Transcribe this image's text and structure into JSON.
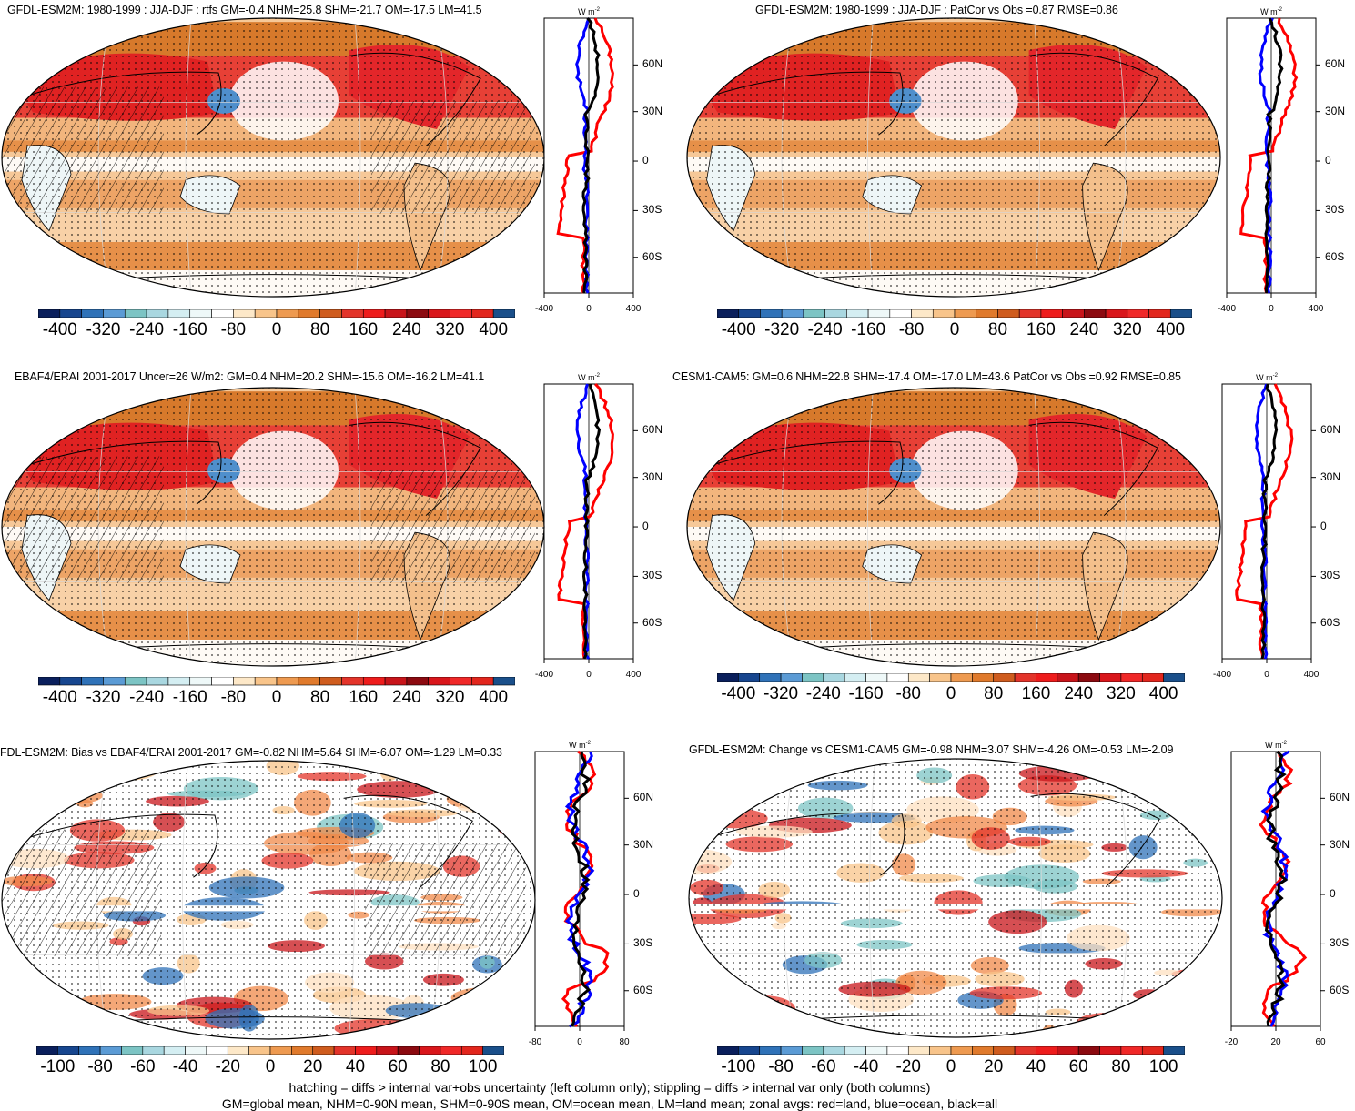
{
  "panels": [
    {
      "id": "p1",
      "title": "GFDL-ESM2M: 1980-1999 : JJA-DJF : rtfs GM=-0.4 NHM=25.8 SHM=-21.7 OM=-17.5 LM=41.5",
      "colorbar_labels": [
        "-400",
        "-320",
        "-240",
        "-160",
        "-80",
        "0",
        "80",
        "160",
        "240",
        "320",
        "400"
      ],
      "zonal_x_labels": [
        "-400",
        "0",
        "400"
      ],
      "zonal_y_labels": [
        "60N",
        "30N",
        "0",
        "30S",
        "60S"
      ],
      "zonal_unit": "W m",
      "zonal_unit_sup": "-2",
      "hatched": true,
      "style": "mean"
    },
    {
      "id": "p2",
      "title": "GFDL-ESM2M: 1980-1999 : JJA-DJF : PatCor vs Obs =0.87 RMSE=0.86",
      "colorbar_labels": [
        "-400",
        "-320",
        "-240",
        "-160",
        "-80",
        "0",
        "80",
        "160",
        "240",
        "320",
        "400"
      ],
      "zonal_x_labels": [
        "-400",
        "0",
        "400"
      ],
      "zonal_y_labels": [
        "60N",
        "30N",
        "0",
        "30S",
        "60S"
      ],
      "zonal_unit": "W m",
      "zonal_unit_sup": "-2",
      "hatched": false,
      "style": "mean"
    },
    {
      "id": "p3",
      "title": "EBAF4/ERAI 2001-2017 Uncer=26 W/m2: GM=0.4 NHM=20.2 SHM=-15.6 OM=-16.2 LM=41.1",
      "colorbar_labels": [
        "-400",
        "-320",
        "-240",
        "-160",
        "-80",
        "0",
        "80",
        "160",
        "240",
        "320",
        "400"
      ],
      "zonal_x_labels": [
        "-400",
        "0",
        "400"
      ],
      "zonal_y_labels": [
        "60N",
        "30N",
        "0",
        "30S",
        "60S"
      ],
      "zonal_unit": "W m",
      "zonal_unit_sup": "-2",
      "hatched": true,
      "style": "mean"
    },
    {
      "id": "p4",
      "title": "CESM1-CAM5: GM=0.6 NHM=22.8 SHM=-17.4 OM=-17.0 LM=43.6 PatCor vs Obs =0.92 RMSE=0.85",
      "colorbar_labels": [
        "-400",
        "-320",
        "-240",
        "-160",
        "-80",
        "0",
        "80",
        "160",
        "240",
        "320",
        "400"
      ],
      "zonal_x_labels": [
        "-400",
        "0",
        "400"
      ],
      "zonal_y_labels": [
        "60N",
        "30N",
        "0",
        "30S",
        "60S"
      ],
      "zonal_unit": "W m",
      "zonal_unit_sup": "-2",
      "hatched": false,
      "style": "mean"
    },
    {
      "id": "p5",
      "title": "FDL-ESM2M: Bias vs EBAF4/ERAI 2001-2017 GM=-0.82 NHM=5.64 SHM=-6.07 OM=-1.29 LM=0.33",
      "colorbar_labels": [
        "-100",
        "-80",
        "-60",
        "-40",
        "-20",
        "0",
        "20",
        "40",
        "60",
        "80",
        "100"
      ],
      "zonal_x_labels": [
        "-80",
        "0",
        "80"
      ],
      "zonal_y_labels": [
        "60N",
        "30N",
        "0",
        "30S",
        "60S"
      ],
      "zonal_unit": "W m",
      "zonal_unit_sup": "-2",
      "hatched": true,
      "style": "diff"
    },
    {
      "id": "p6",
      "title": "GFDL-ESM2M: Change vs CESM1-CAM5 GM=-0.98 NHM=3.07 SHM=-4.26 OM=-0.53 LM=-2.09",
      "colorbar_labels": [
        "-100",
        "-80",
        "-60",
        "-40",
        "-20",
        "0",
        "20",
        "40",
        "60",
        "80",
        "100"
      ],
      "zonal_x_labels": [
        "-20",
        "20",
        "60"
      ],
      "zonal_y_labels": [
        "60N",
        "30N",
        "0",
        "30S",
        "60S"
      ],
      "zonal_unit": "W m",
      "zonal_unit_sup": "-2",
      "hatched": false,
      "style": "diff"
    }
  ],
  "colorbar_colors": [
    "#0a1f5c",
    "#17468f",
    "#2f72b8",
    "#5b9bd5",
    "#7cc4c4",
    "#a9d7e0",
    "#d4eef2",
    "#eef8f8",
    "#ffffff",
    "#fde8c8",
    "#f8c48a",
    "#ee9a50",
    "#e07a2c",
    "#cf5c1e",
    "#e3342a",
    "#ee1c1c",
    "#c8141a",
    "#8c0a10",
    "#d9161b",
    "#f02828",
    "#e2261d",
    "#1a4f8a"
  ],
  "series_colors": {
    "land": "#ff0000",
    "ocean": "#0000ff",
    "all": "#000000"
  },
  "footer": {
    "line1": "hatching = diffs > internal var+obs uncertainty (left column only); stippling = diffs > internal var only (both columns)",
    "line2": "GM=global mean, NHM=0-90N mean, SHM=0-90S mean, OM=ocean mean, LM=land mean; zonal avgs: red=land, blue=ocean, black=all"
  }
}
